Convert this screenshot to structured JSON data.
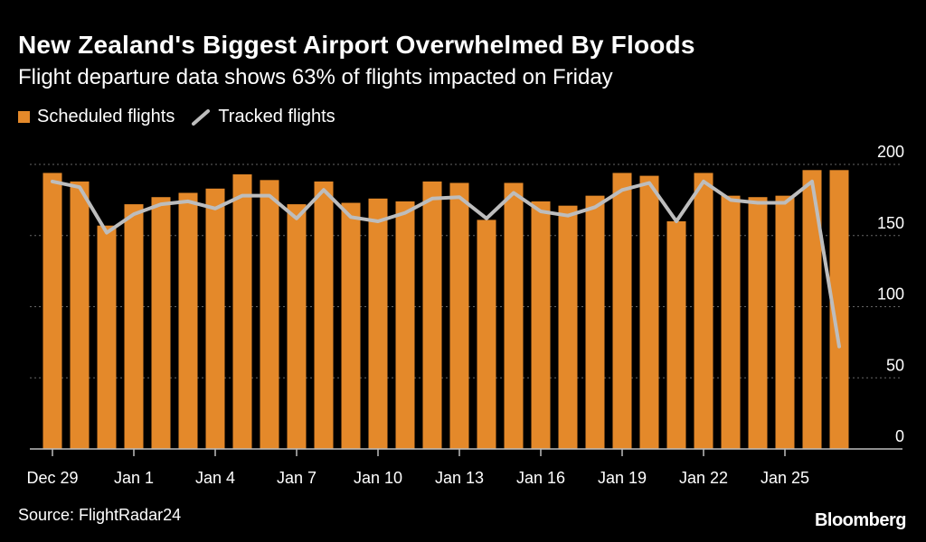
{
  "header": {
    "title": "New Zealand's Biggest Airport Overwhelmed By Floods",
    "subtitle": "Flight departure data shows 63% of flights impacted on Friday"
  },
  "legend": {
    "scheduled": "Scheduled flights",
    "tracked": "Tracked flights"
  },
  "footer": {
    "source": "Source: FlightRadar24",
    "brand": "Bloomberg"
  },
  "colors": {
    "bar": "#E4892A",
    "line": "#BDBDBD",
    "grid": "#666666",
    "axis": "#BDBDBD"
  },
  "chart_data": {
    "type": "bar",
    "title": "New Zealand's Biggest Airport Overwhelmed By Floods",
    "xlabel": "",
    "ylabel": "",
    "ylim": [
      0,
      200
    ],
    "yticks": [
      0,
      50,
      100,
      150,
      200
    ],
    "categories": [
      "Dec 29",
      "Dec 30",
      "Dec 31",
      "Jan 1",
      "Jan 2",
      "Jan 3",
      "Jan 4",
      "Jan 5",
      "Jan 6",
      "Jan 7",
      "Jan 8",
      "Jan 9",
      "Jan 10",
      "Jan 11",
      "Jan 12",
      "Jan 13",
      "Jan 14",
      "Jan 15",
      "Jan 16",
      "Jan 17",
      "Jan 18",
      "Jan 19",
      "Jan 20",
      "Jan 21",
      "Jan 22",
      "Jan 23",
      "Jan 24",
      "Jan 25",
      "Jan 26",
      "Jan 27"
    ],
    "x_tick_labels": [
      {
        "index": 0,
        "label": "Dec 29"
      },
      {
        "index": 3,
        "label": "Jan 1"
      },
      {
        "index": 6,
        "label": "Jan 4"
      },
      {
        "index": 9,
        "label": "Jan 7"
      },
      {
        "index": 12,
        "label": "Jan 10"
      },
      {
        "index": 15,
        "label": "Jan 13"
      },
      {
        "index": 18,
        "label": "Jan 16"
      },
      {
        "index": 21,
        "label": "Jan 19"
      },
      {
        "index": 24,
        "label": "Jan 22"
      },
      {
        "index": 27,
        "label": "Jan 25"
      }
    ],
    "series": [
      {
        "name": "Scheduled flights",
        "type": "bar",
        "values": [
          194,
          188,
          157,
          172,
          177,
          180,
          183,
          193,
          189,
          172,
          188,
          173,
          176,
          174,
          188,
          187,
          161,
          187,
          174,
          171,
          178,
          194,
          192,
          160,
          194,
          178,
          177,
          178,
          196,
          196
        ]
      },
      {
        "name": "Tracked flights",
        "type": "line",
        "values": [
          188,
          184,
          152,
          165,
          172,
          174,
          169,
          178,
          178,
          162,
          182,
          163,
          160,
          166,
          176,
          177,
          162,
          180,
          167,
          164,
          170,
          182,
          187,
          160,
          188,
          175,
          173,
          173,
          188,
          72
        ]
      }
    ]
  }
}
